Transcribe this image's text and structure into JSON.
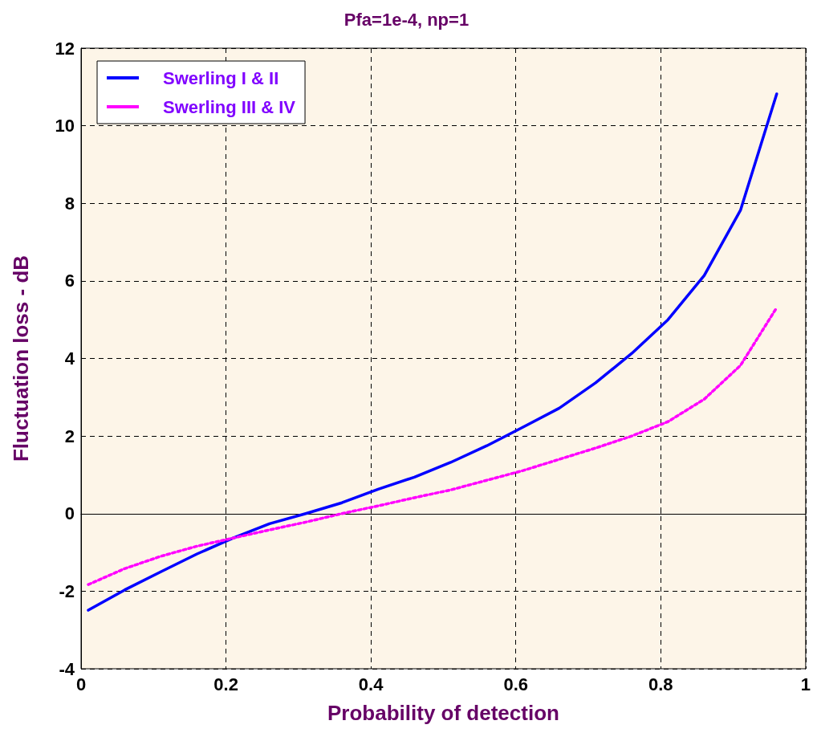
{
  "chart_data": {
    "type": "line",
    "title": "Pfa=1e-4, np=1",
    "xlabel": "Probability of detection",
    "ylabel": "Fluctuation loss - dB",
    "x": [
      0.01,
      0.06,
      0.11,
      0.16,
      0.21,
      0.26,
      0.31,
      0.36,
      0.41,
      0.46,
      0.51,
      0.56,
      0.61,
      0.66,
      0.71,
      0.76,
      0.81,
      0.86,
      0.91,
      0.96
    ],
    "series": [
      {
        "name": "Swerling I & II",
        "color": "#0000ff",
        "line_style": "solid",
        "values": [
          -2.49,
          -1.97,
          -1.5,
          -1.04,
          -0.63,
          -0.26,
          0.0,
          0.28,
          0.63,
          0.94,
          1.32,
          1.75,
          2.23,
          2.72,
          3.37,
          4.13,
          5.0,
          6.14,
          7.82,
          10.82
        ]
      },
      {
        "name": "Swerling III & IV",
        "color": "#ff00ff",
        "line_style": "dotted",
        "values": [
          -1.83,
          -1.42,
          -1.1,
          -0.84,
          -0.63,
          -0.42,
          -0.22,
          0.0,
          0.2,
          0.41,
          0.61,
          0.86,
          1.11,
          1.4,
          1.69,
          2.0,
          2.37,
          2.95,
          3.82,
          5.31
        ]
      }
    ],
    "xlim": [
      0,
      1
    ],
    "xticks": [
      0,
      0.2,
      0.4,
      0.6,
      0.8,
      1
    ],
    "ylim": [
      -4,
      12
    ],
    "yticks": [
      -4,
      -2,
      0,
      2,
      4,
      6,
      8,
      10,
      12
    ],
    "grid": true,
    "legend": "top left",
    "marker": "none"
  }
}
